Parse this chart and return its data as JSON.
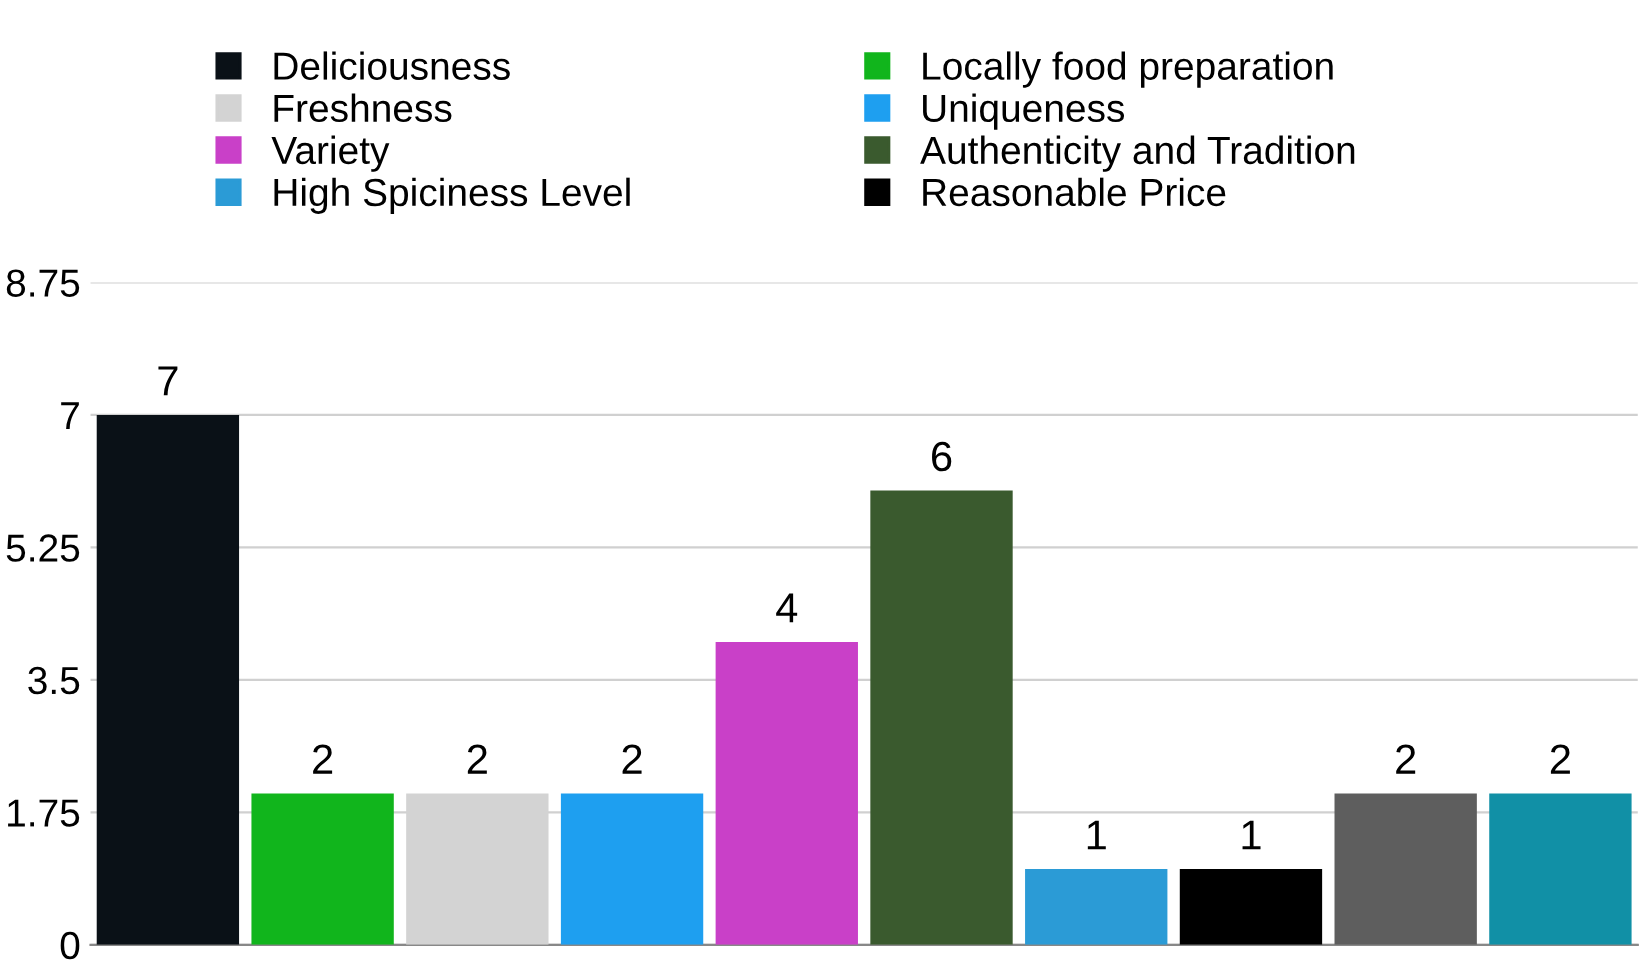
{
  "chart_data": {
    "type": "bar",
    "categories": [
      null,
      null,
      null,
      null,
      null,
      null,
      null,
      null,
      null,
      null
    ],
    "series": [
      {
        "name": "Deliciousness",
        "color": "#0a1117",
        "values": [
          7,
          null,
          null,
          null,
          null,
          null,
          null,
          null,
          null,
          null
        ]
      },
      {
        "name": "Locally food preparation",
        "color": "#11b51c",
        "values": [
          null,
          2,
          null,
          null,
          null,
          null,
          null,
          null,
          null,
          null
        ]
      },
      {
        "name": "Freshness",
        "color": "#d3d3d3",
        "values": [
          null,
          null,
          2,
          null,
          null,
          null,
          null,
          null,
          null,
          null
        ]
      },
      {
        "name": "Uniqueness",
        "color": "#1e9ff0",
        "values": [
          null,
          null,
          null,
          2,
          null,
          null,
          null,
          null,
          null,
          null
        ]
      },
      {
        "name": "Variety",
        "color": "#c940c8",
        "values": [
          null,
          null,
          null,
          null,
          4,
          null,
          null,
          null,
          null,
          null
        ]
      },
      {
        "name": "Authenticity and Tradition",
        "color": "#3a5a2e",
        "values": [
          null,
          null,
          null,
          null,
          null,
          6,
          null,
          null,
          null,
          null
        ]
      },
      {
        "name": "High Spiciness Level",
        "color": "#2b9bd6",
        "values": [
          null,
          null,
          null,
          null,
          null,
          null,
          1,
          null,
          null,
          null
        ]
      },
      {
        "name": "Reasonable Price",
        "color": "#000000",
        "values": [
          null,
          null,
          null,
          null,
          null,
          null,
          null,
          1,
          null,
          null
        ]
      },
      {
        "color": "#5e5e5e",
        "values": [
          null,
          null,
          null,
          null,
          null,
          null,
          null,
          null,
          2,
          null
        ]
      },
      {
        "color": "#1190a6",
        "values": [
          null,
          null,
          null,
          null,
          null,
          null,
          null,
          null,
          null,
          2
        ]
      }
    ],
    "ylim": [
      0,
      8.75
    ],
    "yticks": [
      0,
      1.75,
      3.5,
      5.25,
      7,
      8.75
    ],
    "grid": "y",
    "legend": "top",
    "data_labels": true
  }
}
